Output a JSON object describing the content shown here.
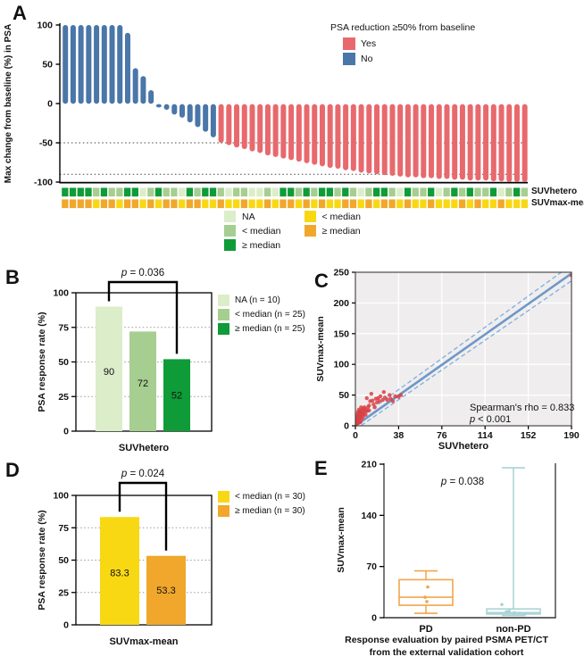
{
  "panels": {
    "a": "A",
    "b": "B",
    "c": "C",
    "d": "D",
    "e": "E"
  },
  "colors": {
    "responder_red": "#E8696D",
    "nonresponder_blue": "#4A76A8",
    "green_na": "#DCEDCA",
    "green_lt": "#A6CE90",
    "green_ge": "#0F9B38",
    "yellow_lt": "#F8D813",
    "orange_ge": "#F0A72C",
    "scatter_point": "#D94045",
    "scatter_line": "#6F97C8",
    "scatter_ci": "#7FADDE",
    "box_pd": "#F0A64C",
    "box_nonpd": "#A9D3D6"
  },
  "chart_data": [
    {
      "id": "A",
      "type": "bar",
      "subtype": "waterfall",
      "ylabel": "Max change from baseline (%) in PSA",
      "ylim": [
        -100,
        100
      ],
      "yticks": [
        100,
        50,
        0,
        -50,
        -100
      ],
      "reference_lines": [
        -50,
        -90
      ],
      "legend_title": "PSA reduction ≥50% from baseline",
      "series": [
        {
          "name": "Yes",
          "color": "#E8696D"
        },
        {
          "name": "No",
          "color": "#4A76A8"
        }
      ],
      "values": [
        100,
        100,
        100,
        100,
        100,
        100,
        100,
        100,
        90,
        45,
        35,
        17,
        -5,
        -8,
        -14,
        -18,
        -24,
        -30,
        -36,
        -43,
        -50,
        -53,
        -56,
        -58,
        -61,
        -63,
        -66,
        -68,
        -70,
        -72,
        -74,
        -76,
        -78,
        -80,
        -82,
        -83,
        -85,
        -86,
        -88,
        -89,
        -90,
        -91,
        -92,
        -93,
        -94,
        -94,
        -95,
        -95,
        -96,
        -96,
        -97,
        -97,
        -98,
        -98,
        -98,
        -99,
        -99,
        -100,
        -100,
        -100
      ],
      "groups": [
        "No",
        "No",
        "No",
        "No",
        "No",
        "No",
        "No",
        "No",
        "No",
        "No",
        "No",
        "No",
        "No",
        "No",
        "No",
        "No",
        "No",
        "No",
        "No",
        "No",
        "Yes",
        "Yes",
        "Yes",
        "Yes",
        "Yes",
        "Yes",
        "Yes",
        "Yes",
        "Yes",
        "Yes",
        "Yes",
        "Yes",
        "Yes",
        "Yes",
        "Yes",
        "Yes",
        "Yes",
        "Yes",
        "Yes",
        "Yes",
        "Yes",
        "Yes",
        "Yes",
        "Yes",
        "Yes",
        "Yes",
        "Yes",
        "Yes",
        "Yes",
        "Yes",
        "Yes",
        "Yes",
        "Yes",
        "Yes",
        "Yes",
        "Yes",
        "Yes",
        "Yes",
        "Yes",
        "Yes"
      ],
      "annotation_rows": [
        {
          "label": "SUVhetero"
        },
        {
          "label": "SUVmax-mean"
        }
      ],
      "suv_hetero": [
        "ge",
        "ge",
        "ge",
        "ge",
        "lt",
        "ge",
        "lt",
        "lt",
        "ge",
        "ge",
        "na",
        "lt",
        "ge",
        "lt",
        "lt",
        "na",
        "ge",
        "lt",
        "ge",
        "ge",
        "lt",
        "na",
        "lt",
        "lt",
        "na",
        "na",
        "lt",
        "na",
        "ge",
        "ge",
        "lt",
        "ge",
        "lt",
        "ge",
        "ge",
        "lt",
        "ge",
        "lt",
        "na",
        "lt",
        "ge",
        "ge",
        "lt",
        "na",
        "ge",
        "lt",
        "lt",
        "ge",
        "na",
        "lt",
        "ge",
        "lt",
        "ge",
        "lt",
        "lt",
        "ge",
        "na",
        "lt",
        "ge",
        "lt"
      ],
      "suv_maxmean": [
        "ge",
        "ge",
        "ge",
        "ge",
        "lt",
        "ge",
        "ge",
        "lt",
        "ge",
        "ge",
        "lt",
        "ge",
        "lt",
        "ge",
        "ge",
        "lt",
        "ge",
        "ge",
        "lt",
        "lt",
        "ge",
        "lt",
        "lt",
        "ge",
        "lt",
        "lt",
        "ge",
        "lt",
        "ge",
        "ge",
        "lt",
        "ge",
        "lt",
        "ge",
        "lt",
        "lt",
        "ge",
        "ge",
        "lt",
        "ge",
        "lt",
        "ge",
        "ge",
        "lt",
        "ge",
        "lt",
        "lt",
        "ge",
        "lt",
        "lt",
        "lt",
        "ge",
        "lt",
        "ge",
        "lt",
        "lt",
        "ge",
        "lt",
        "lt",
        "lt"
      ],
      "annotation_legend": {
        "suv_hetero": [
          {
            "key": "na",
            "label": "NA",
            "color": "#DCEDCA"
          },
          {
            "key": "lt",
            "label": "< median",
            "color": "#A6CE90"
          },
          {
            "key": "ge",
            "label": "≥ median",
            "color": "#0F9B38"
          }
        ],
        "suv_maxmean": [
          {
            "key": "lt",
            "label": "< median",
            "color": "#F8D813"
          },
          {
            "key": "ge",
            "label": "≥ median",
            "color": "#F0A72C"
          }
        ]
      }
    },
    {
      "id": "B",
      "type": "bar",
      "categories": [
        "NA",
        "< median",
        "≥ median"
      ],
      "values": [
        90,
        72,
        52
      ],
      "bar_labels": [
        "90",
        "72",
        "52"
      ],
      "colors": [
        "#DCEDCA",
        "#A6CE90",
        "#0F9B38"
      ],
      "xlabel": "SUVhetero",
      "ylabel": "PSA response rate (%)",
      "ylim": [
        0,
        100
      ],
      "yticks": [
        0,
        25,
        50,
        75,
        100
      ],
      "legend": [
        "NA (n = 10)",
        "< median (n = 25)",
        "≥ median (n = 25)"
      ],
      "p_value": "p = 0.036",
      "comparison": [
        0,
        2
      ]
    },
    {
      "id": "C",
      "type": "scatter",
      "xlabel": "SUVhetero",
      "ylabel": "SUVmax-mean",
      "xlim": [
        0,
        190
      ],
      "xticks": [
        0,
        38,
        76,
        114,
        152,
        190
      ],
      "ylim": [
        0,
        250
      ],
      "yticks": [
        0,
        50,
        100,
        150,
        200,
        250
      ],
      "point_color": "#D94045",
      "points": [
        [
          0.5,
          2
        ],
        [
          0.8,
          5
        ],
        [
          1,
          8
        ],
        [
          1,
          3
        ],
        [
          1.2,
          12
        ],
        [
          1.5,
          6
        ],
        [
          1.5,
          15
        ],
        [
          2,
          4
        ],
        [
          2,
          10
        ],
        [
          2,
          18
        ],
        [
          2.2,
          22
        ],
        [
          2.5,
          8
        ],
        [
          3,
          5
        ],
        [
          3,
          12
        ],
        [
          3,
          20
        ],
        [
          3,
          26
        ],
        [
          3.5,
          15
        ],
        [
          4,
          10
        ],
        [
          4,
          18
        ],
        [
          4,
          24
        ],
        [
          4.5,
          6
        ],
        [
          5,
          14
        ],
        [
          5,
          22
        ],
        [
          5,
          30
        ],
        [
          5.5,
          18
        ],
        [
          6,
          12
        ],
        [
          6,
          25
        ],
        [
          6.5,
          20
        ],
        [
          7,
          16
        ],
        [
          7,
          28
        ],
        [
          8,
          22
        ],
        [
          8,
          30
        ],
        [
          9,
          26
        ],
        [
          9,
          18
        ],
        [
          10,
          45
        ],
        [
          10,
          24
        ],
        [
          11,
          30
        ],
        [
          12,
          33
        ],
        [
          12,
          25
        ],
        [
          13,
          40
        ],
        [
          14,
          52
        ],
        [
          15,
          41
        ],
        [
          16,
          35
        ],
        [
          17,
          30
        ],
        [
          18,
          44
        ],
        [
          19,
          38
        ],
        [
          20,
          45
        ],
        [
          21,
          40
        ],
        [
          22,
          48
        ],
        [
          24,
          42
        ],
        [
          25,
          55
        ],
        [
          26,
          46
        ],
        [
          28,
          42
        ],
        [
          30,
          50
        ],
        [
          31,
          44
        ],
        [
          33,
          40
        ],
        [
          35,
          48
        ],
        [
          38,
          47
        ],
        [
          40,
          50
        ],
        [
          190,
          245
        ]
      ],
      "regression": {
        "line": [
          [
            0,
            0
          ],
          [
            190,
            248
          ]
        ],
        "ci_upper": [
          [
            0,
            8
          ],
          [
            190,
            262
          ]
        ],
        "ci_lower": [
          [
            0,
            -6
          ],
          [
            190,
            236
          ]
        ],
        "line_color": "#6F97C8",
        "ci_color": "#7FADDE"
      },
      "annotation": "Spearman's rho = 0.833",
      "annotation2": "p < 0.001"
    },
    {
      "id": "D",
      "type": "bar",
      "categories": [
        "< median",
        "≥ median"
      ],
      "values": [
        83.3,
        53.3
      ],
      "bar_labels": [
        "83.3",
        "53.3"
      ],
      "colors": [
        "#F8D813",
        "#F0A72C"
      ],
      "xlabel": "SUVmax-mean",
      "ylabel": "PSA response rate (%)",
      "ylim": [
        0,
        100
      ],
      "yticks": [
        0,
        25,
        50,
        75,
        100
      ],
      "legend": [
        "< median (n = 30)",
        "≥ median (n = 30)"
      ],
      "p_value": "p = 0.024",
      "comparison": [
        0,
        1
      ]
    },
    {
      "id": "E",
      "type": "box",
      "categories": [
        "PD",
        "non-PD"
      ],
      "ylabel": "SUVmax-mean",
      "ylim": [
        0,
        210
      ],
      "yticks": [
        0,
        70,
        140,
        210
      ],
      "p_value": "p = 0.038",
      "xlabel_lines": [
        "Response evaluation by paired PSMA PET/CT",
        "from the external validation cohort"
      ],
      "boxes": [
        {
          "label": "PD",
          "color": "#F0A64C",
          "whisker_low": 6,
          "q1": 17,
          "median": 28,
          "q3": 52,
          "whisker_high": 64,
          "points": [
            42,
            28,
            22
          ]
        },
        {
          "label": "non-PD",
          "color": "#A9D3D6",
          "whisker_low": 3,
          "q1": 5,
          "median": 7,
          "q3": 12,
          "whisker_high": 205,
          "points": [
            18,
            9,
            7,
            6,
            5,
            8
          ]
        }
      ]
    }
  ]
}
